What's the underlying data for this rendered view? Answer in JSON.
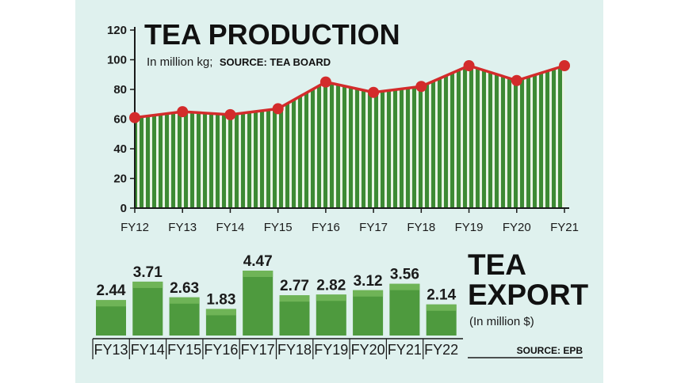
{
  "chart_data": [
    {
      "type": "area",
      "title": "TEA PRODUCTION",
      "subtitle": "In million kg;",
      "source": "SOURCE: TEA BOARD",
      "x": [
        "FY12",
        "FY13",
        "FY14",
        "FY15",
        "FY16",
        "FY17",
        "FY18",
        "FY19",
        "FY20",
        "FY21"
      ],
      "values": [
        61,
        65,
        63,
        67,
        85,
        78,
        82,
        96,
        86,
        96
      ],
      "ylim": [
        0,
        120
      ],
      "yticks": [
        "0",
        "20",
        "40",
        "60",
        "80",
        "100",
        "120"
      ],
      "line_color": "#d32b2b",
      "fill_color": "#3f8a35"
    },
    {
      "type": "bar",
      "title_line1": "TEA",
      "title_line2": "EXPORT",
      "subtitle": "(In million $)",
      "source": "SOURCE: EPB",
      "categories": [
        "FY13",
        "FY14",
        "FY15",
        "FY16",
        "FY17",
        "FY18",
        "FY19",
        "FY20",
        "FY21",
        "FY22"
      ],
      "values": [
        2.44,
        3.71,
        2.63,
        1.83,
        4.47,
        2.77,
        2.82,
        3.12,
        3.56,
        2.14
      ],
      "labels": [
        "2.44",
        "3.71",
        "2.63",
        "1.83",
        "4.47",
        "2.77",
        "2.82",
        "3.12",
        "3.56",
        "2.14"
      ],
      "ylim": [
        0,
        4.47
      ],
      "bar_color": "#4e9a3e"
    }
  ]
}
